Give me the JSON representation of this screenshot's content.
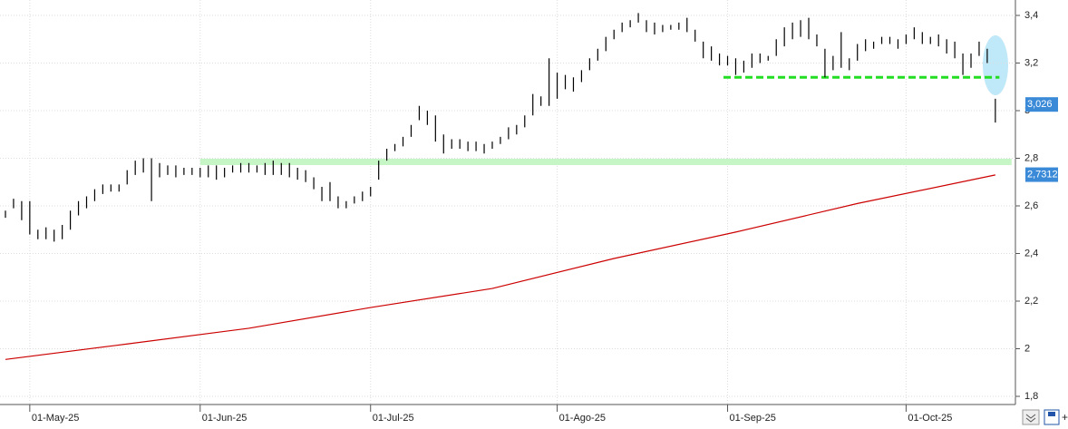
{
  "chart_data": {
    "type": "range-bar",
    "xlim": [
      -0.67,
      124.25
    ],
    "xticks": [
      {
        "value": 3,
        "label": "01-May-25"
      },
      {
        "value": 24,
        "label": "01-Jun-25"
      },
      {
        "value": 45,
        "label": "01-Jul-25"
      },
      {
        "value": 68,
        "label": "01-Ago-25"
      },
      {
        "value": 89,
        "label": "01-Sep-25"
      },
      {
        "value": 111,
        "label": "01-Oct-25"
      }
    ],
    "ylim": [
      1.7657,
      3.4648
    ],
    "yticks": [
      {
        "value": 1.8,
        "label": "1,8"
      },
      2,
      {
        "value": 2.2,
        "label": "2,2"
      },
      {
        "value": 2.4,
        "label": "2,4"
      },
      {
        "value": 2.6,
        "label": "2,6"
      },
      {
        "value": 2.8,
        "label": "2,8"
      },
      {
        "value": 3,
        "label": "3"
      },
      {
        "value": 3.2,
        "label": "3,2"
      },
      {
        "value": 3.4,
        "label": "3,4"
      }
    ],
    "grid": true,
    "bars": {
      "color": "#000000",
      "high": [
        2.58,
        2.63,
        2.62,
        2.62,
        2.5,
        2.51,
        2.5,
        2.52,
        2.58,
        2.62,
        2.64,
        2.67,
        2.69,
        2.69,
        2.69,
        2.75,
        2.79,
        2.8,
        2.8,
        2.78,
        2.77,
        2.77,
        2.76,
        2.76,
        2.76,
        2.77,
        2.77,
        2.76,
        2.77,
        2.78,
        2.78,
        2.77,
        2.78,
        2.79,
        2.78,
        2.78,
        2.76,
        2.75,
        2.72,
        2.68,
        2.7,
        2.64,
        2.62,
        2.64,
        2.66,
        2.68,
        2.79,
        2.84,
        2.86,
        2.89,
        2.94,
        3.02,
        3.0,
        2.98,
        2.9,
        2.88,
        2.88,
        2.87,
        2.87,
        2.86,
        2.87,
        2.89,
        2.93,
        2.94,
        2.98,
        3.07,
        3.06,
        3.22,
        3.16,
        3.15,
        3.14,
        3.17,
        3.22,
        3.26,
        3.31,
        3.34,
        3.37,
        3.38,
        3.41,
        3.38,
        3.37,
        3.36,
        3.36,
        3.37,
        3.39,
        3.34,
        3.29,
        3.27,
        3.24,
        3.23,
        3.22,
        3.21,
        3.24,
        3.24,
        3.23,
        3.3,
        3.35,
        3.37,
        3.38,
        3.39,
        3.32,
        3.26,
        3.23,
        3.33,
        3.22,
        3.28,
        3.3,
        3.29,
        3.31,
        3.31,
        3.3,
        3.32,
        3.35,
        3.33,
        3.31,
        3.32,
        3.3,
        3.29,
        3.24,
        3.24,
        3.29,
        3.26,
        3.05
      ],
      "low": [
        2.55,
        2.59,
        2.54,
        2.48,
        2.46,
        2.46,
        2.45,
        2.46,
        2.5,
        2.56,
        2.59,
        2.62,
        2.65,
        2.66,
        2.66,
        2.69,
        2.73,
        2.74,
        2.62,
        2.72,
        2.73,
        2.72,
        2.73,
        2.73,
        2.72,
        2.72,
        2.71,
        2.72,
        2.74,
        2.74,
        2.74,
        2.74,
        2.73,
        2.73,
        2.73,
        2.72,
        2.71,
        2.7,
        2.67,
        2.62,
        2.62,
        2.59,
        2.59,
        2.61,
        2.62,
        2.64,
        2.71,
        2.79,
        2.83,
        2.85,
        2.89,
        2.96,
        2.94,
        2.87,
        2.82,
        2.84,
        2.84,
        2.83,
        2.83,
        2.82,
        2.84,
        2.86,
        2.88,
        2.9,
        2.93,
        2.98,
        3.02,
        3.02,
        3.05,
        3.09,
        3.08,
        3.12,
        3.17,
        3.21,
        3.25,
        3.3,
        3.33,
        3.35,
        3.37,
        3.33,
        3.32,
        3.33,
        3.34,
        3.34,
        3.33,
        3.29,
        3.22,
        3.21,
        3.19,
        3.19,
        3.15,
        3.16,
        3.18,
        3.2,
        3.21,
        3.23,
        3.27,
        3.3,
        3.31,
        3.3,
        3.27,
        3.14,
        3.17,
        3.18,
        3.17,
        3.21,
        3.25,
        3.26,
        3.28,
        3.28,
        3.26,
        3.28,
        3.3,
        3.28,
        3.28,
        3.27,
        3.24,
        3.22,
        3.15,
        3.18,
        3.23,
        3.2,
        2.95
      ]
    },
    "moving_average": {
      "color": "#cc0000",
      "x": [
        0,
        15,
        30,
        45,
        60,
        75,
        90,
        105,
        122
      ],
      "values": [
        1.955,
        2.02,
        2.086,
        2.173,
        2.253,
        2.379,
        2.49,
        2.61,
        2.73
      ]
    },
    "levels": [
      {
        "value": 2.785,
        "from": 24,
        "to": 124,
        "color": "#c6f5c6",
        "style": "solid"
      },
      {
        "value": 3.14,
        "from": 88.5,
        "to": 122.5,
        "color": "#22dd22",
        "style": "dashed"
      }
    ],
    "price_labels": [
      {
        "value": 3.026,
        "label": "3,026"
      },
      {
        "value": 2.7312,
        "label": "2,7312"
      }
    ]
  }
}
